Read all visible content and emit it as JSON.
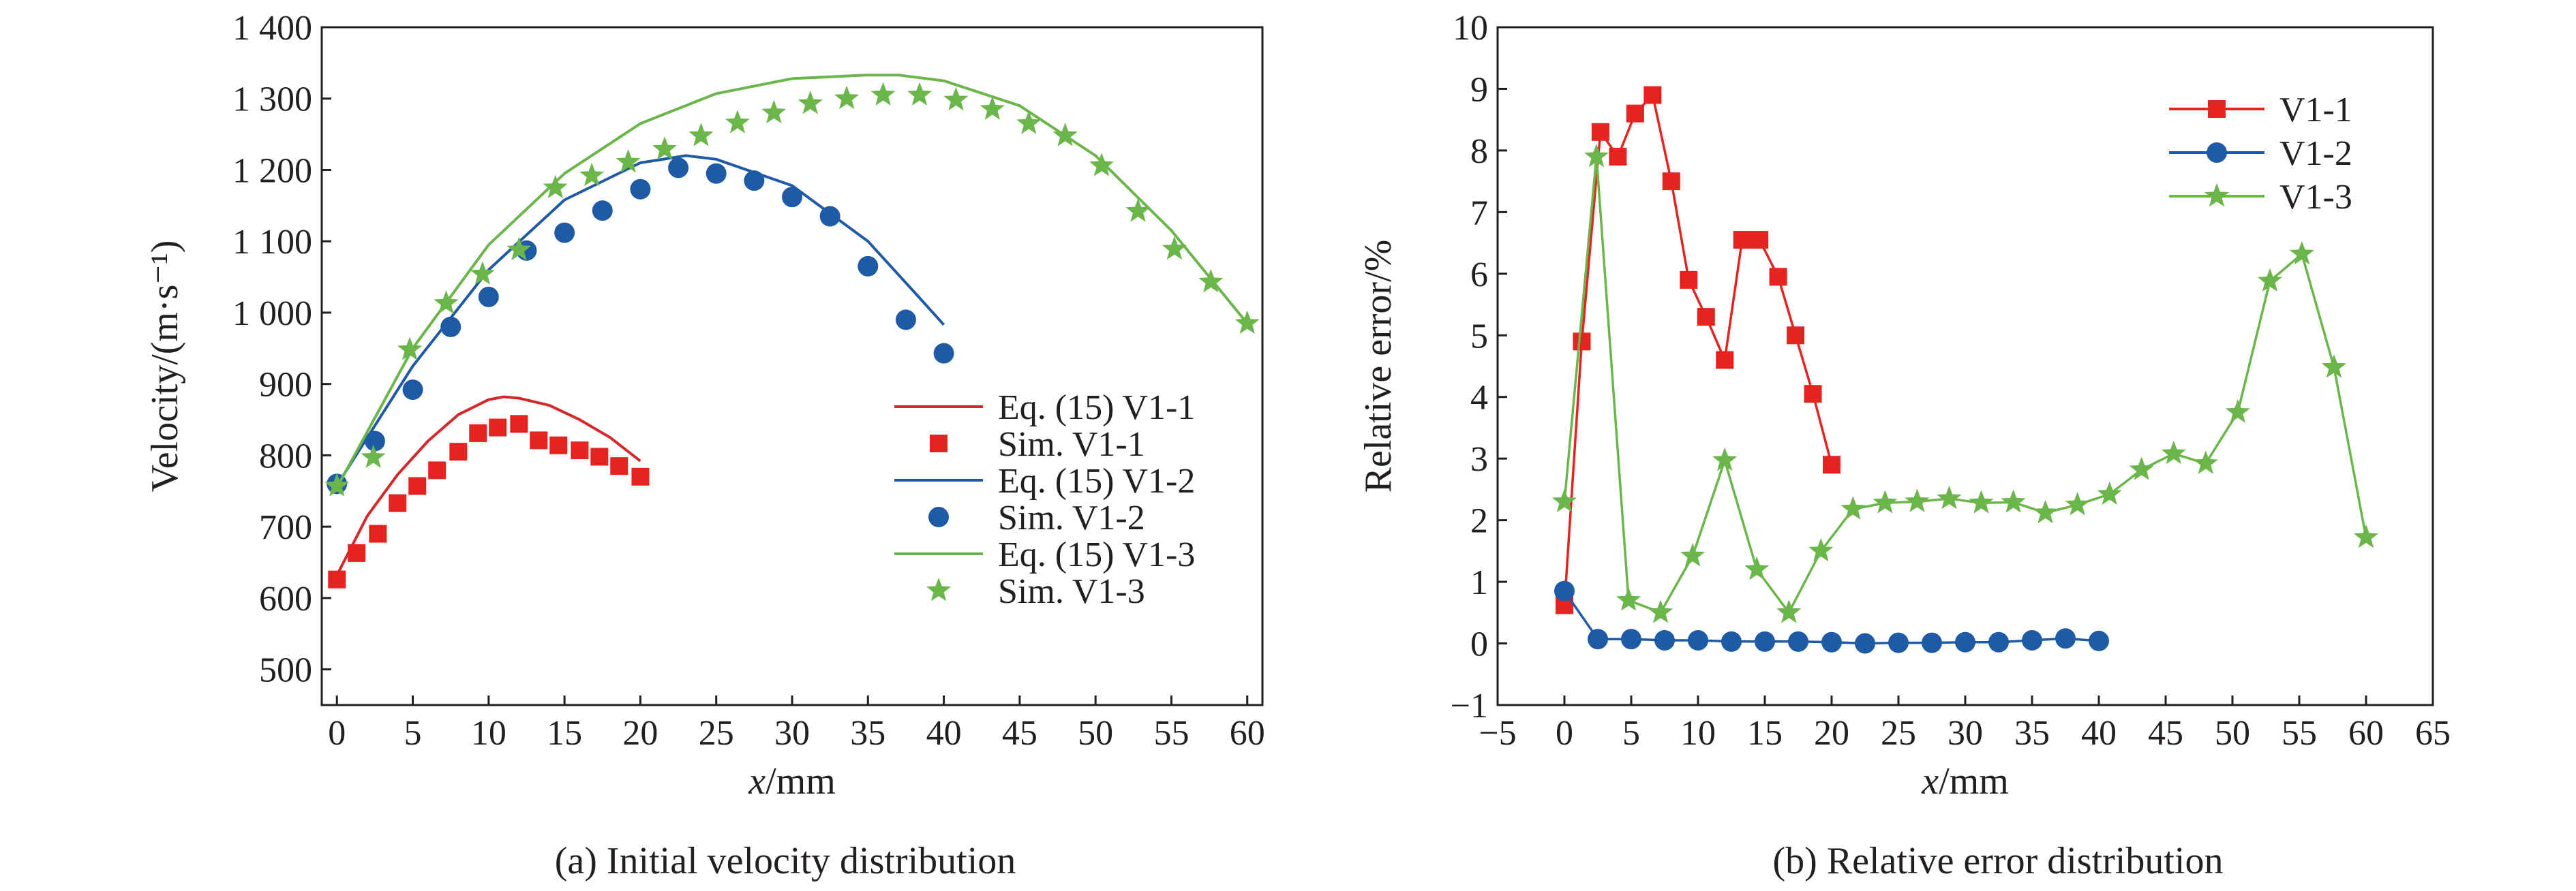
{
  "chart_data": [
    {
      "type": "line",
      "caption": "(a) Initial velocity distribution",
      "ylabel": "Velocity/(m·s⁻¹)",
      "xlabel_italic": "x",
      "xlabel_unit": "/mm",
      "xlim": [
        -1,
        61
      ],
      "ylim": [
        450,
        1400
      ],
      "xticks": [
        0,
        5,
        10,
        15,
        20,
        25,
        30,
        35,
        40,
        45,
        50,
        55,
        60
      ],
      "yticks": [
        500,
        600,
        700,
        800,
        900,
        1000,
        1100,
        1200,
        1300,
        1400
      ],
      "ytick_labels": [
        "500",
        "600",
        "700",
        "800",
        "900",
        "1 000",
        "1 100",
        "1 200",
        "1 300",
        "1 400"
      ],
      "legend_position": "bottom-right",
      "series": [
        {
          "name": "Eq. (15) V1-1",
          "kind": "line",
          "color": "#d6282b",
          "x": [
            0,
            2,
            4,
            6,
            8,
            10,
            11,
            12,
            14,
            16,
            18,
            20
          ],
          "y": [
            632,
            715,
            773,
            820,
            857,
            878,
            882,
            880,
            870,
            850,
            825,
            792
          ]
        },
        {
          "name": "Sim. V1-1",
          "kind": "marker",
          "marker": "square",
          "color": "#e52421",
          "x": [
            0,
            1.3,
            2.7,
            4,
            5.3,
            6.6,
            8,
            9.3,
            10.6,
            12,
            13.3,
            14.6,
            16,
            17.3,
            18.6,
            20
          ],
          "y": [
            626,
            663,
            690,
            733,
            757,
            779,
            805,
            831,
            839,
            844,
            821,
            814,
            807,
            798,
            785,
            770
          ]
        },
        {
          "name": "Eq. (15) V1-2",
          "kind": "line",
          "color": "#1f5aa6",
          "x": [
            0,
            5,
            10,
            15,
            20,
            23,
            25,
            30,
            35,
            38,
            40
          ],
          "y": [
            758,
            925,
            1060,
            1158,
            1210,
            1220,
            1215,
            1178,
            1100,
            1030,
            983
          ]
        },
        {
          "name": "Sim. V1-2",
          "kind": "marker",
          "marker": "circle",
          "color": "#1f5aa6",
          "x": [
            0,
            2.5,
            5,
            7.5,
            10,
            12.5,
            15,
            17.5,
            20,
            22.5,
            25,
            27.5,
            30,
            32.5,
            35,
            37.5,
            40
          ],
          "y": [
            760,
            820,
            892,
            980,
            1022,
            1087,
            1112,
            1143,
            1173,
            1203,
            1195,
            1185,
            1162,
            1135,
            1065,
            990,
            943
          ]
        },
        {
          "name": "Eq. (15) V1-3",
          "kind": "line",
          "color": "#6ab64a",
          "x": [
            0,
            5,
            10,
            15,
            20,
            25,
            30,
            35,
            37,
            40,
            45,
            50,
            55,
            60
          ],
          "y": [
            755,
            950,
            1095,
            1195,
            1265,
            1307,
            1328,
            1333,
            1333,
            1325,
            1290,
            1220,
            1115,
            985
          ]
        },
        {
          "name": "Sim. V1-3",
          "kind": "marker",
          "marker": "star",
          "color": "#6ab64a",
          "x": [
            0,
            2.4,
            4.8,
            7.2,
            9.6,
            12,
            14.4,
            16.8,
            19.2,
            21.6,
            24,
            26.4,
            28.8,
            31.2,
            33.6,
            36,
            38.4,
            40.8,
            43.2,
            45.6,
            48,
            50.4,
            52.8,
            55.2,
            57.6,
            60
          ],
          "y": [
            757,
            797,
            948,
            1013,
            1054,
            1088,
            1175,
            1192,
            1211,
            1229,
            1248,
            1266,
            1280,
            1293,
            1300,
            1305,
            1305,
            1298,
            1285,
            1265,
            1248,
            1206,
            1142,
            1089,
            1043,
            985
          ]
        }
      ]
    },
    {
      "type": "line",
      "caption": "(b) Relative error distribution",
      "ylabel": "Relative error/%",
      "xlabel_italic": "x",
      "xlabel_unit": "/mm",
      "xlim": [
        -5,
        65
      ],
      "ylim": [
        -1,
        10
      ],
      "xticks": [
        -5,
        0,
        5,
        10,
        15,
        20,
        25,
        30,
        35,
        40,
        45,
        50,
        55,
        60,
        65
      ],
      "xtick_labels": [
        "−5",
        "0",
        "5",
        "10",
        "15",
        "20",
        "25",
        "30",
        "35",
        "40",
        "45",
        "50",
        "55",
        "60",
        "65"
      ],
      "yticks": [
        -1,
        0,
        1,
        2,
        3,
        4,
        5,
        6,
        7,
        8,
        9,
        10
      ],
      "ytick_labels": [
        "−1",
        "0",
        "1",
        "2",
        "3",
        "4",
        "5",
        "6",
        "7",
        "8",
        "9",
        "10"
      ],
      "legend_position": "top-right",
      "series": [
        {
          "name": "V1-1",
          "marker": "square",
          "color": "#e52421",
          "x": [
            0,
            1.3,
            2.7,
            4,
            5.3,
            6.6,
            8,
            9.3,
            10.6,
            12,
            13.3,
            14.6,
            16,
            17.3,
            18.6,
            20
          ],
          "y": [
            0.62,
            4.9,
            8.3,
            7.9,
            8.6,
            8.9,
            7.5,
            5.9,
            5.3,
            4.6,
            6.55,
            6.55,
            5.95,
            5.0,
            4.05,
            2.9
          ]
        },
        {
          "name": "V1-2",
          "marker": "circle",
          "color": "#1f5aa6",
          "x": [
            0,
            2.5,
            5,
            7.5,
            10,
            12.5,
            15,
            17.5,
            20,
            22.5,
            25,
            27.5,
            30,
            32.5,
            35,
            37.5,
            40
          ],
          "y": [
            0.85,
            0.07,
            0.07,
            0.05,
            0.05,
            0.03,
            0.03,
            0.03,
            0.02,
            0.0,
            0.01,
            0.01,
            0.02,
            0.02,
            0.05,
            0.08,
            0.04
          ]
        },
        {
          "name": "V1-3",
          "marker": "star",
          "color": "#6ab64a",
          "x": [
            0,
            2.4,
            4.8,
            7.2,
            9.6,
            12,
            14.4,
            16.8,
            19.2,
            21.6,
            24,
            26.4,
            28.8,
            31.2,
            33.6,
            36,
            38.4,
            40.8,
            43.2,
            45.6,
            48,
            50.4,
            52.8,
            55.2,
            57.6,
            60
          ],
          "y": [
            2.3,
            7.9,
            0.7,
            0.5,
            1.42,
            2.97,
            1.2,
            0.5,
            1.5,
            2.18,
            2.28,
            2.3,
            2.35,
            2.28,
            2.29,
            2.12,
            2.25,
            2.42,
            2.82,
            3.08,
            2.92,
            3.75,
            5.88,
            6.32,
            4.48,
            1.72
          ]
        }
      ]
    }
  ]
}
